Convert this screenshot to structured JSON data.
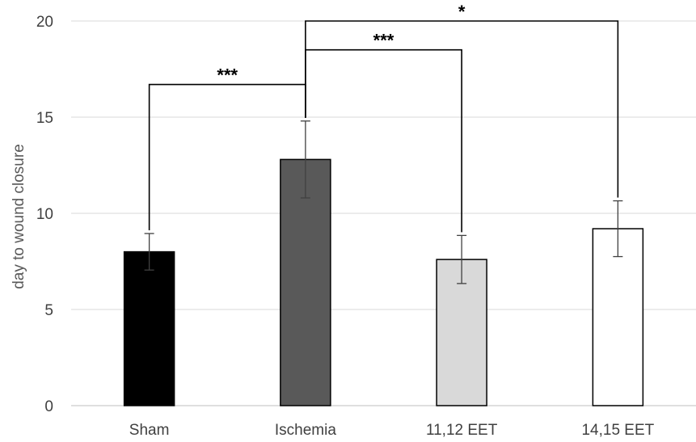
{
  "chart_data": {
    "type": "bar",
    "title": "",
    "xlabel": "",
    "ylabel": "day to wound closure",
    "ylim": [
      0,
      20
    ],
    "yticks": [
      0,
      5,
      10,
      15,
      20
    ],
    "grid": true,
    "categories": [
      "Sham",
      "Ischemia",
      "11,12 EET",
      "14,15 EET"
    ],
    "values": [
      8.0,
      12.8,
      7.6,
      9.2
    ],
    "errors": [
      0.95,
      2.0,
      1.25,
      1.45
    ],
    "bar_colors": [
      "#000000",
      "#595959",
      "#d9d9d9",
      "#ffffff"
    ],
    "significance": [
      {
        "from": 0,
        "to": 1,
        "label": "***",
        "level": 16.7
      },
      {
        "from": 1,
        "to": 2,
        "label": "***",
        "level": 18.5
      },
      {
        "from": 1,
        "to": 3,
        "label": "*",
        "level": 20.0
      }
    ]
  }
}
